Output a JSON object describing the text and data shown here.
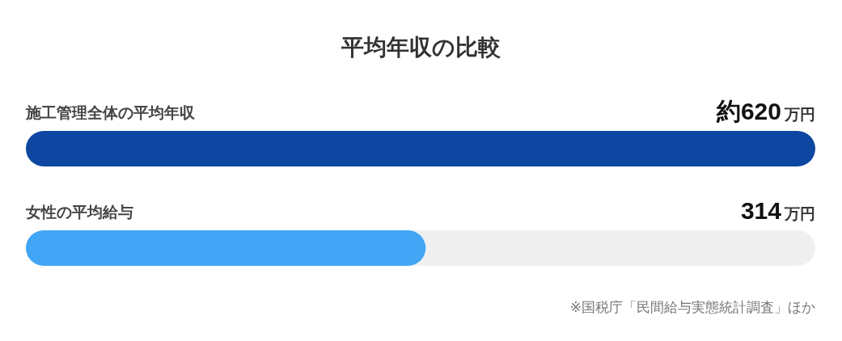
{
  "chart_data": {
    "type": "bar",
    "orientation": "horizontal",
    "title": "平均年収の比較",
    "categories": [
      "施工管理全体の平均年収",
      "女性の平均給与"
    ],
    "values": [
      620,
      314
    ],
    "colors": [
      "#0d47a1",
      "#42a5f5"
    ],
    "value_labels": [
      "約620万円",
      "314万円"
    ],
    "xlim": [
      0,
      620
    ],
    "annotations": [
      "※国税庁「民間給与実態統計調査」ほか"
    ]
  }
}
